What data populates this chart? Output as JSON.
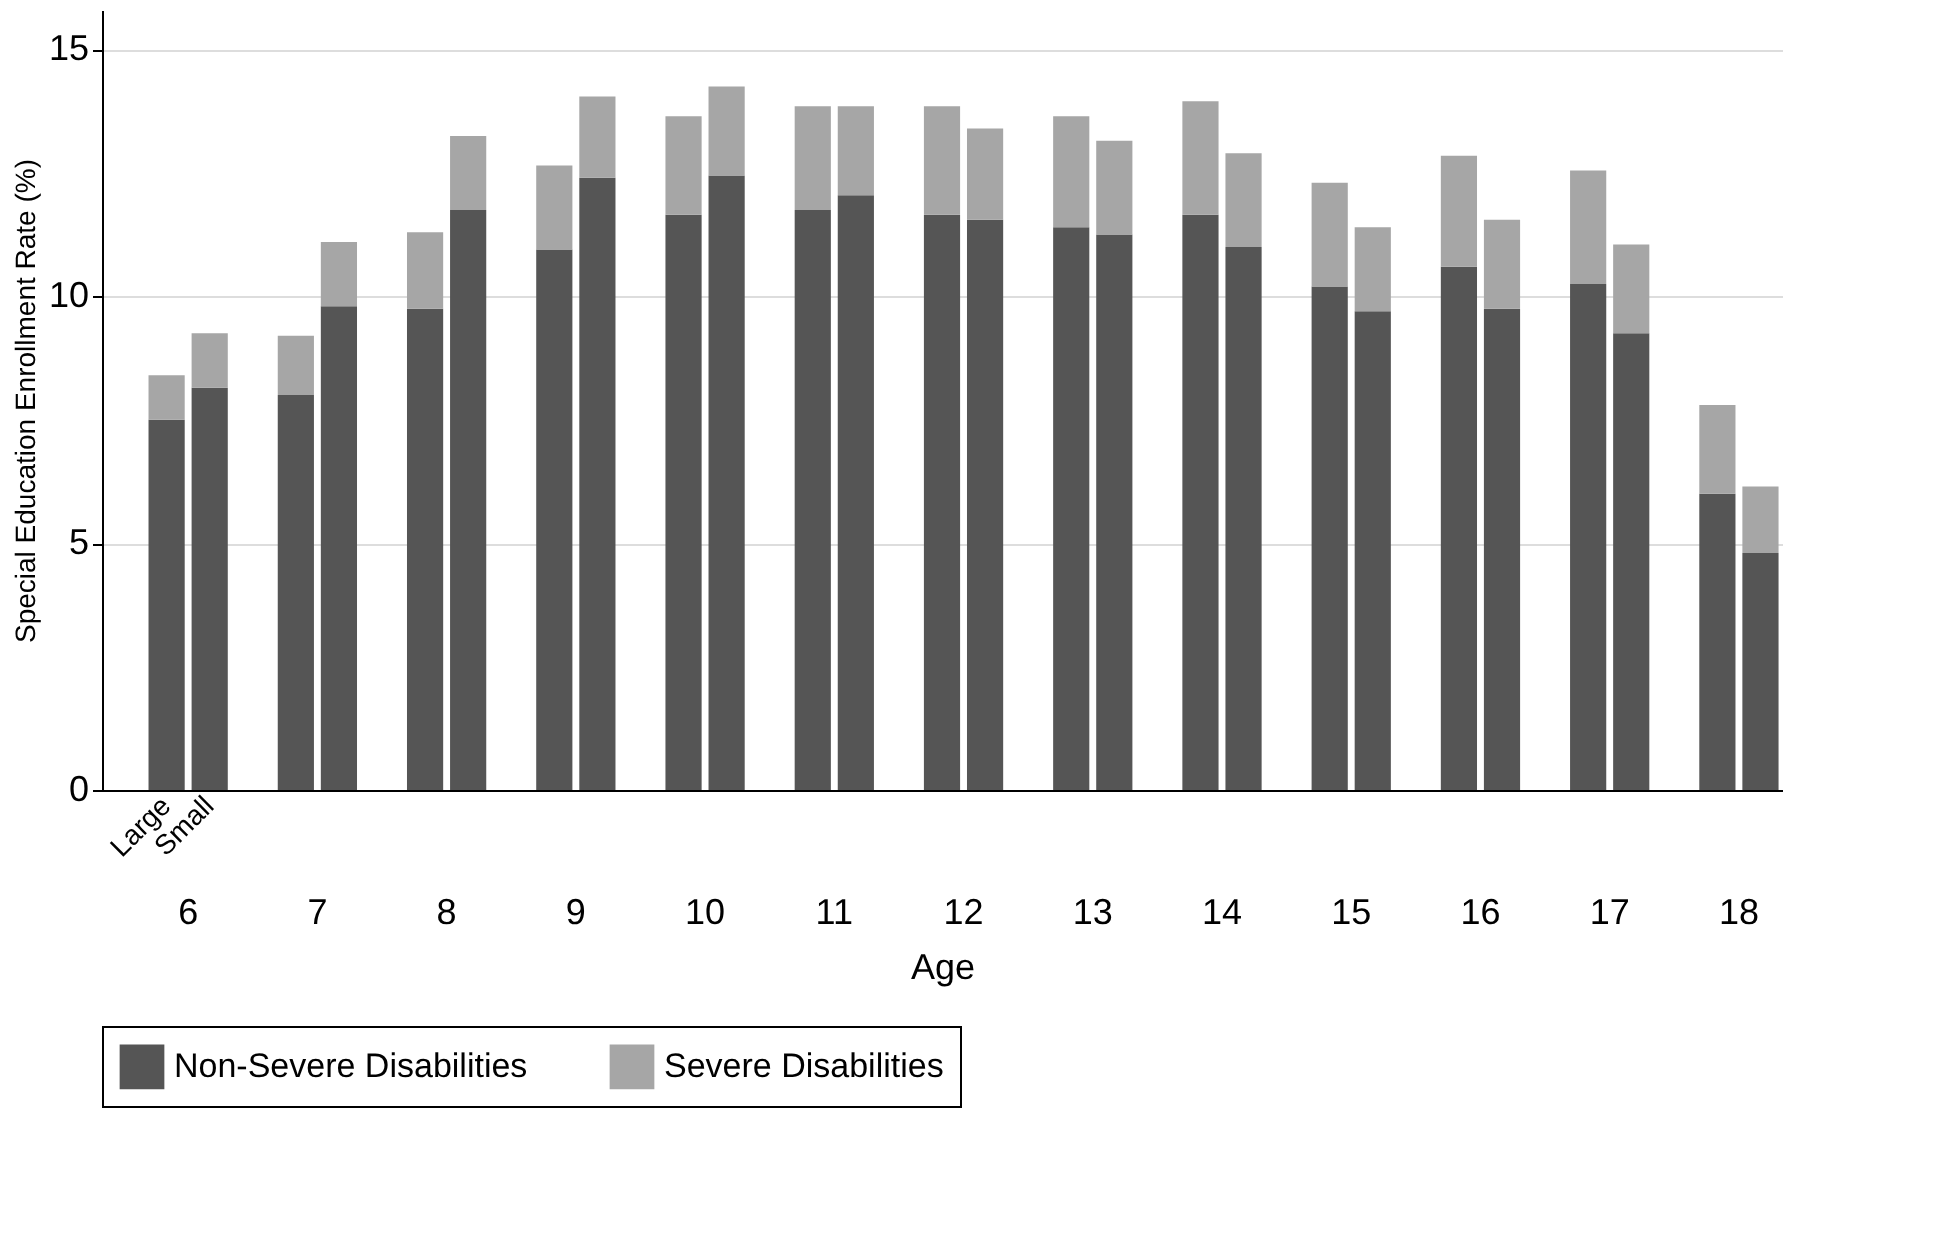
{
  "chart_data": {
    "type": "bar",
    "stacked": true,
    "categories": [
      null,
      "Large",
      "Small",
      null,
      null,
      null,
      null,
      null,
      null,
      null,
      null,
      null,
      null,
      null,
      null,
      null,
      null,
      null,
      null,
      null,
      null,
      null,
      null,
      null,
      null,
      null,
      null,
      null,
      null,
      null,
      null,
      null,
      null,
      null,
      null,
      null,
      null,
      null,
      null
    ],
    "annotations": [
      "6",
      "7",
      "8",
      "9",
      "10",
      "11",
      "12",
      "13",
      "14",
      "15",
      "16",
      "17",
      "18"
    ],
    "series": [
      {
        "name": "Non-Severe Disabilities",
        "color": "#555555",
        "values": [
          null,
          7.5,
          8.15,
          null,
          8.0,
          9.8,
          null,
          9.75,
          11.75,
          null,
          10.95,
          12.4,
          null,
          11.65,
          12.45,
          null,
          11.75,
          12.05,
          null,
          11.65,
          11.55,
          null,
          11.4,
          11.25,
          null,
          11.65,
          11.0,
          null,
          10.2,
          9.7,
          null,
          10.6,
          9.75,
          null,
          10.25,
          9.25,
          null,
          6.0,
          4.8
        ]
      },
      {
        "name": "Severe Disabilities",
        "color": "#a6a6a6",
        "values": [
          null,
          0.9,
          1.1,
          null,
          1.2,
          1.3,
          null,
          1.55,
          1.5,
          null,
          1.7,
          1.65,
          null,
          2.0,
          1.8,
          null,
          2.1,
          1.8,
          null,
          2.2,
          1.85,
          null,
          2.25,
          1.9,
          null,
          2.3,
          1.9,
          null,
          2.1,
          1.7,
          null,
          2.25,
          1.8,
          null,
          2.3,
          1.8,
          null,
          1.8,
          1.35
        ]
      }
    ],
    "xlabel": "Age",
    "ylabel": "Special Education Enrollment Rate (%)",
    "ylim": [
      0,
      15.8
    ],
    "yticks": [
      0,
      5,
      10,
      15
    ],
    "grid": "y",
    "legend": "bottom"
  }
}
